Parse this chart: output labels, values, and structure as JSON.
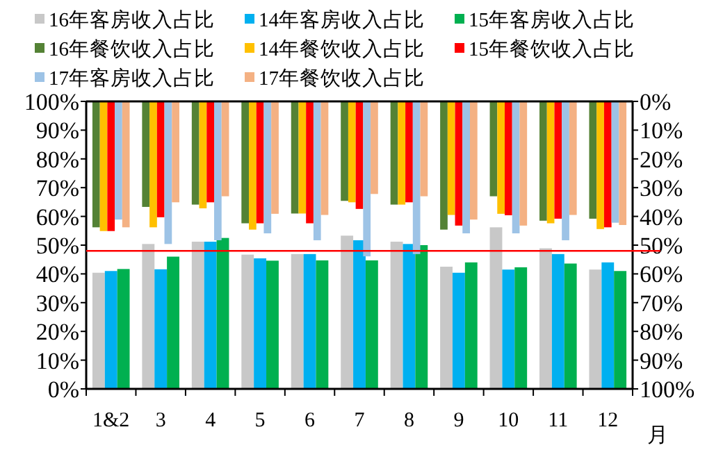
{
  "chart_data": {
    "type": "bar",
    "categories": [
      "1&2",
      "3",
      "4",
      "5",
      "6",
      "7",
      "8",
      "9",
      "10",
      "11",
      "12"
    ],
    "xlabel": "月",
    "series": [
      {
        "name": "16年客房收入占比",
        "color": "#c8c8c8",
        "values": [
          40.4,
          50.4,
          51.2,
          46.7,
          46.9,
          53.3,
          51.2,
          42.5,
          56.2,
          48.9,
          41.5
        ]
      },
      {
        "name": "14年客房收入占比",
        "color": "#00b0f0",
        "values": [
          41.0,
          41.6,
          51.2,
          45.4,
          46.9,
          51.7,
          50.4,
          40.4,
          41.5,
          46.9,
          44.0
        ]
      },
      {
        "name": "15年客房收入占比",
        "color": "#00b050",
        "values": [
          41.7,
          46.0,
          52.5,
          44.6,
          44.7,
          44.7,
          50.0,
          44.0,
          42.3,
          43.6,
          41.0
        ]
      },
      {
        "name": "16年餐饮收入占比",
        "color": "#548235",
        "axis": "y2",
        "values": [
          43.8,
          36.7,
          35.9,
          42.4,
          39.0,
          34.6,
          35.9,
          44.6,
          33.0,
          41.5,
          40.8
        ]
      },
      {
        "name": "14年餐饮收入占比",
        "color": "#ffc000",
        "axis": "y2",
        "values": [
          45.1,
          43.8,
          37.2,
          44.6,
          39.0,
          35.1,
          35.9,
          39.5,
          39.1,
          42.4,
          44.4
        ]
      },
      {
        "name": "15年餐饮收入占比",
        "color": "#ff0000",
        "axis": "y2",
        "values": [
          45.1,
          40.3,
          35.1,
          42.4,
          42.4,
          37.4,
          35.1,
          43.2,
          39.6,
          40.8,
          43.8
        ]
      },
      {
        "name": "17年客房收入占比",
        "color": "#9dc3e6",
        "axis": "y2",
        "values": [
          41.1,
          49.6,
          48.3,
          45.9,
          48.3,
          53.9,
          53.1,
          45.9,
          45.9,
          48.3,
          42.2
        ]
      },
      {
        "name": "17年餐饮收入占比",
        "color": "#f4b183",
        "axis": "y2",
        "values": [
          43.8,
          35.1,
          33.0,
          39.1,
          39.5,
          32.2,
          33.0,
          41.1,
          43.2,
          39.5,
          43.0
        ]
      }
    ],
    "ylim": [
      0,
      100
    ],
    "yticks": [
      {
        "value": 0,
        "label": "0%"
      },
      {
        "value": 10,
        "label": "10%"
      },
      {
        "value": 20,
        "label": "20%"
      },
      {
        "value": 30,
        "label": "30%"
      },
      {
        "value": 40,
        "label": "40%"
      },
      {
        "value": 50,
        "label": "50%"
      },
      {
        "value": 60,
        "label": "60%"
      },
      {
        "value": 70,
        "label": "70%"
      },
      {
        "value": 80,
        "label": "80%"
      },
      {
        "value": 90,
        "label": "90%"
      },
      {
        "value": 100,
        "label": "100%"
      }
    ],
    "y2lim": [
      100,
      0
    ],
    "y2ticks": [
      {
        "value": 0,
        "label": "0%"
      },
      {
        "value": 10,
        "label": "10%"
      },
      {
        "value": 20,
        "label": "20%"
      },
      {
        "value": 30,
        "label": "30%"
      },
      {
        "value": 40,
        "label": "40%"
      },
      {
        "value": 50,
        "label": "50%"
      },
      {
        "value": 60,
        "label": "60%"
      },
      {
        "value": 70,
        "label": "70%"
      },
      {
        "value": 80,
        "label": "80%"
      },
      {
        "value": 90,
        "label": "90%"
      },
      {
        "value": 100,
        "label": "100%"
      }
    ],
    "ref_lines": [
      {
        "axis": "y",
        "value": 48,
        "color": "#ff0000"
      }
    ],
    "legend": "top",
    "grid": false
  }
}
